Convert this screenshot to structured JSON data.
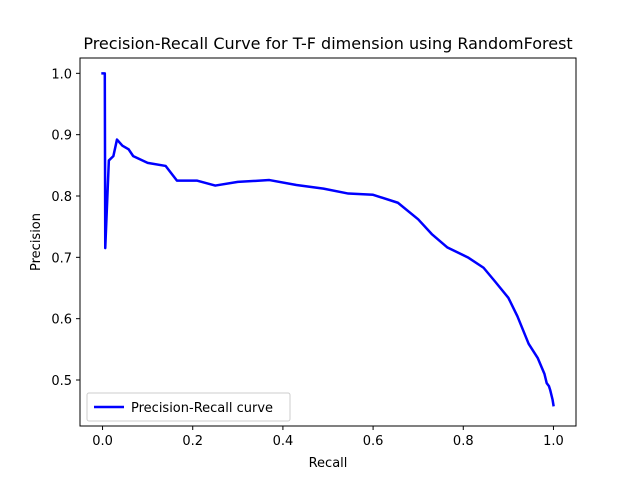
{
  "chart_data": {
    "type": "line",
    "title": "Precision-Recall Curve for T-F dimension using RandomForest",
    "xlabel": "Recall",
    "ylabel": "Precision",
    "xlim": [
      -0.05,
      1.05
    ],
    "ylim": [
      0.425,
      1.025
    ],
    "xticks": [
      0.0,
      0.2,
      0.4,
      0.6,
      0.8,
      1.0
    ],
    "xtick_labels": [
      "0.0",
      "0.2",
      "0.4",
      "0.6",
      "0.8",
      "1.0"
    ],
    "yticks": [
      0.5,
      0.6,
      0.7,
      0.8,
      0.9,
      1.0
    ],
    "ytick_labels": [
      "0.5",
      "0.6",
      "0.7",
      "0.8",
      "0.9",
      "1.0"
    ],
    "grid": false,
    "legend_position": "lower-left",
    "series": [
      {
        "name": "Precision-Recall curve",
        "color": "#0000ff",
        "x": [
          0.0,
          0.005,
          0.006,
          0.014,
          0.024,
          0.032,
          0.044,
          0.058,
          0.068,
          0.1,
          0.14,
          0.165,
          0.21,
          0.25,
          0.3,
          0.37,
          0.43,
          0.49,
          0.545,
          0.6,
          0.655,
          0.7,
          0.73,
          0.765,
          0.81,
          0.845,
          0.87,
          0.9,
          0.92,
          0.945,
          0.965,
          0.98,
          0.985,
          0.99,
          0.993,
          0.998,
          1.0
        ],
        "y": [
          1.0,
          1.0,
          0.715,
          0.858,
          0.865,
          0.892,
          0.882,
          0.876,
          0.865,
          0.854,
          0.849,
          0.825,
          0.825,
          0.817,
          0.823,
          0.826,
          0.818,
          0.812,
          0.804,
          0.802,
          0.789,
          0.762,
          0.738,
          0.716,
          0.7,
          0.683,
          0.661,
          0.634,
          0.604,
          0.559,
          0.536,
          0.51,
          0.495,
          0.49,
          0.483,
          0.468,
          0.459
        ]
      }
    ]
  }
}
